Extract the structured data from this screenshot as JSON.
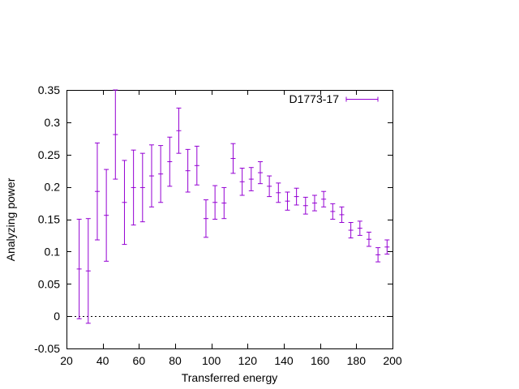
{
  "chart_data": {
    "type": "scatter",
    "title": "",
    "xlabel": "Transferred energy",
    "ylabel": "Analyzing power",
    "xlim": [
      20,
      200
    ],
    "ylim": [
      -0.05,
      0.35
    ],
    "xticks": [
      20,
      40,
      60,
      80,
      100,
      120,
      140,
      160,
      180,
      200
    ],
    "yticks": [
      -0.05,
      0,
      0.05,
      0.1,
      0.15,
      0.2,
      0.25,
      0.3,
      0.35
    ],
    "xtick_labels": [
      "20",
      "40",
      "60",
      "80",
      "100",
      "120",
      "140",
      "160",
      "180",
      "200"
    ],
    "ytick_labels": [
      "-0.05",
      "0",
      "0.05",
      "0.1",
      "0.15",
      "0.2",
      "0.25",
      "0.3",
      "0.35"
    ],
    "zero_line": true,
    "grid": false,
    "legend_position": "top-right",
    "colors": {
      "series": "#9400d3",
      "axis": "#000000"
    },
    "series": [
      {
        "name": "D1773-17",
        "points": [
          {
            "x": 27,
            "y": 0.073,
            "err": 0.077
          },
          {
            "x": 32,
            "y": 0.07,
            "err": 0.081
          },
          {
            "x": 37,
            "y": 0.193,
            "err": 0.075
          },
          {
            "x": 42,
            "y": 0.156,
            "err": 0.071
          },
          {
            "x": 47,
            "y": 0.281,
            "err": 0.069
          },
          {
            "x": 52,
            "y": 0.176,
            "err": 0.065
          },
          {
            "x": 57,
            "y": 0.199,
            "err": 0.058
          },
          {
            "x": 62,
            "y": 0.199,
            "err": 0.053
          },
          {
            "x": 67,
            "y": 0.217,
            "err": 0.048
          },
          {
            "x": 72,
            "y": 0.22,
            "err": 0.044
          },
          {
            "x": 77,
            "y": 0.239,
            "err": 0.038
          },
          {
            "x": 82,
            "y": 0.287,
            "err": 0.035
          },
          {
            "x": 87,
            "y": 0.225,
            "err": 0.033
          },
          {
            "x": 92,
            "y": 0.233,
            "err": 0.03
          },
          {
            "x": 97,
            "y": 0.151,
            "err": 0.029
          },
          {
            "x": 102,
            "y": 0.176,
            "err": 0.026
          },
          {
            "x": 107,
            "y": 0.175,
            "err": 0.024
          },
          {
            "x": 112,
            "y": 0.244,
            "err": 0.023
          },
          {
            "x": 117,
            "y": 0.208,
            "err": 0.021
          },
          {
            "x": 122,
            "y": 0.212,
            "err": 0.018
          },
          {
            "x": 127,
            "y": 0.222,
            "err": 0.017
          },
          {
            "x": 132,
            "y": 0.201,
            "err": 0.016
          },
          {
            "x": 137,
            "y": 0.191,
            "err": 0.015
          },
          {
            "x": 142,
            "y": 0.178,
            "err": 0.014
          },
          {
            "x": 147,
            "y": 0.185,
            "err": 0.013
          },
          {
            "x": 152,
            "y": 0.171,
            "err": 0.013
          },
          {
            "x": 157,
            "y": 0.175,
            "err": 0.012
          },
          {
            "x": 162,
            "y": 0.181,
            "err": 0.012
          },
          {
            "x": 167,
            "y": 0.162,
            "err": 0.012
          },
          {
            "x": 172,
            "y": 0.157,
            "err": 0.012
          },
          {
            "x": 177,
            "y": 0.133,
            "err": 0.012
          },
          {
            "x": 182,
            "y": 0.136,
            "err": 0.011
          },
          {
            "x": 187,
            "y": 0.119,
            "err": 0.011
          },
          {
            "x": 192,
            "y": 0.095,
            "err": 0.011
          },
          {
            "x": 197,
            "y": 0.107,
            "err": 0.011
          }
        ]
      }
    ]
  }
}
